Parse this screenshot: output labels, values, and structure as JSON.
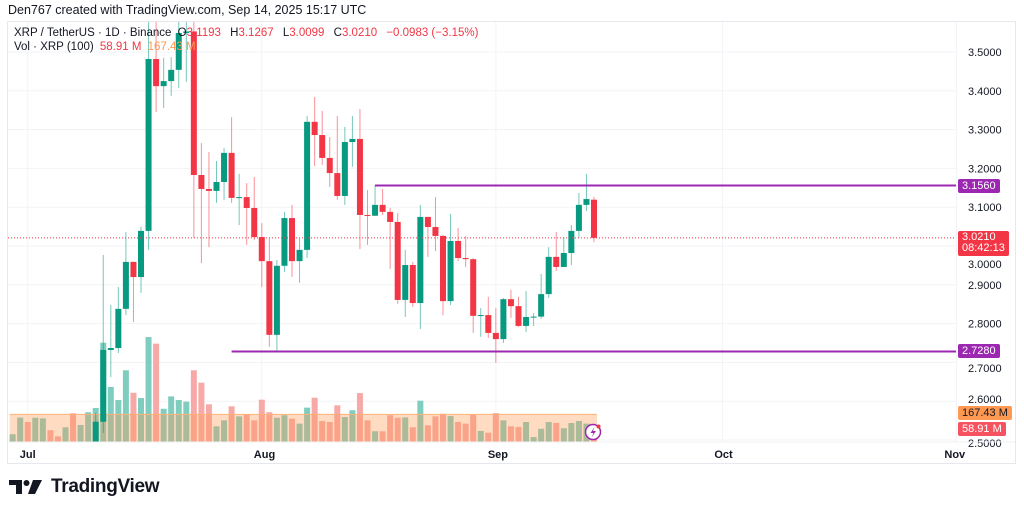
{
  "credit": "Den767 created with TradingView.com, Sep 14, 2025 15:17 UTC",
  "legend": {
    "symbol": "XRP / TetherUS · 1D · Binance",
    "o_label": "O",
    "o": "3.1193",
    "h_label": "H",
    "h": "3.1267",
    "l_label": "L",
    "l": "3.0099",
    "c_label": "C",
    "c": "3.0210",
    "change": "−0.0983 (−3.15%)",
    "vol_label": "Vol · XRP (100)",
    "vol": "58.91 M",
    "vol_ma": "167.43 M"
  },
  "badges": {
    "resistance": "3.1560",
    "last_price": "3.0210",
    "countdown": "08:42:13",
    "support": "2.7280",
    "vol_ma": "167.43 M",
    "vol": "58.91 M"
  },
  "logo": {
    "text": "TradingView"
  },
  "colors": {
    "up": "#089981",
    "down": "#f23645",
    "level": "#9c27b0",
    "vol_ma": "#ff9850"
  },
  "chart_data": {
    "type": "candlestick",
    "title": "XRP / TetherUS · 1D · Binance",
    "ylim": [
      2.48,
      3.6
    ],
    "y_ticks": [
      "3.5000",
      "3.4000",
      "3.3000",
      "3.2000",
      "3.1000",
      "3.0000",
      "2.9000",
      "2.8000",
      "2.7000",
      "2.6000",
      "2.5000"
    ],
    "x_ticks": [
      "Jul",
      "Aug",
      "Sep",
      "Oct",
      "Nov"
    ],
    "grid": true,
    "horizontal_levels": [
      {
        "price": 3.156,
        "from": "Aug 16"
      },
      {
        "price": 2.728,
        "from": "Jul 28"
      }
    ],
    "last_price": 3.021,
    "volume_ma": 167.43,
    "volume_unit": "M",
    "bars": [
      {
        "d": "Jun 29",
        "v": 47,
        "up": true
      },
      {
        "d": "Jun 30",
        "v": 148,
        "up": true
      },
      {
        "d": "Jul 1",
        "v": 121,
        "up": false
      },
      {
        "d": "Jul 2",
        "v": 147,
        "up": true
      },
      {
        "d": "Jul 3",
        "v": 143,
        "up": true
      },
      {
        "d": "Jul 4",
        "v": 71,
        "up": false
      },
      {
        "d": "Jul 5",
        "v": 34,
        "up": false
      },
      {
        "d": "Jul 6",
        "v": 89,
        "up": true
      },
      {
        "d": "Jul 7",
        "v": 174,
        "up": false
      },
      {
        "d": "Jul 8",
        "v": 103,
        "up": true
      },
      {
        "d": "Jul 9",
        "v": 180,
        "up": true
      },
      {
        "d": "Jul 10",
        "o": 2.49,
        "h": 2.57,
        "l": 2.47,
        "c": 2.547,
        "v": 206
      },
      {
        "d": "Jul 11",
        "o": 2.547,
        "h": 2.977,
        "l": 2.518,
        "c": 2.732,
        "v": 601
      },
      {
        "d": "Jul 12",
        "o": 2.732,
        "h": 2.848,
        "l": 2.662,
        "c": 2.737,
        "v": 333
      },
      {
        "d": "Jul 13",
        "o": 2.737,
        "h": 2.894,
        "l": 2.724,
        "c": 2.838,
        "v": 254
      },
      {
        "d": "Jul 14",
        "o": 2.838,
        "h": 3.036,
        "l": 2.822,
        "c": 2.959,
        "v": 434
      },
      {
        "d": "Jul 15",
        "o": 2.959,
        "h": 2.96,
        "l": 2.804,
        "c": 2.92,
        "v": 298
      },
      {
        "d": "Jul 16",
        "o": 2.92,
        "h": 3.05,
        "l": 2.879,
        "c": 3.039,
        "v": 266
      },
      {
        "d": "Jul 17",
        "o": 3.039,
        "h": 3.59,
        "l": 2.99,
        "c": 3.482,
        "v": 635
      },
      {
        "d": "Jul 18",
        "o": 3.482,
        "h": 3.66,
        "l": 3.345,
        "c": 3.412,
        "v": 595
      },
      {
        "d": "Jul 19",
        "o": 3.412,
        "h": 3.485,
        "l": 3.356,
        "c": 3.425,
        "v": 201
      },
      {
        "d": "Jul 20",
        "o": 3.425,
        "h": 3.487,
        "l": 3.387,
        "c": 3.454,
        "v": 276
      },
      {
        "d": "Jul 21",
        "o": 3.454,
        "h": 3.63,
        "l": 3.407,
        "c": 3.549,
        "v": 254
      },
      {
        "d": "Jul 22",
        "o": 3.549,
        "h": 3.6,
        "l": 3.423,
        "c": 3.553,
        "v": 244
      },
      {
        "d": "Jul 23",
        "o": 3.553,
        "h": 3.6,
        "l": 3.021,
        "c": 3.183,
        "v": 434
      },
      {
        "d": "Jul 24",
        "o": 3.183,
        "h": 3.265,
        "l": 2.956,
        "c": 3.147,
        "v": 359
      },
      {
        "d": "Jul 25",
        "o": 3.147,
        "h": 3.242,
        "l": 2.997,
        "c": 3.142,
        "v": 228
      },
      {
        "d": "Jul 26",
        "o": 3.142,
        "h": 3.219,
        "l": 3.111,
        "c": 3.165,
        "v": 95
      },
      {
        "d": "Jul 27",
        "o": 3.165,
        "h": 3.253,
        "l": 3.119,
        "c": 3.24,
        "v": 131
      },
      {
        "d": "Jul 28",
        "o": 3.24,
        "h": 3.332,
        "l": 3.111,
        "c": 3.124,
        "v": 216
      },
      {
        "d": "Jul 29",
        "o": 3.124,
        "h": 3.186,
        "l": 3.054,
        "c": 3.126,
        "v": 155
      },
      {
        "d": "Jul 30",
        "o": 3.126,
        "h": 3.162,
        "l": 3.003,
        "c": 3.098,
        "v": 168
      },
      {
        "d": "Jul 31",
        "o": 3.098,
        "h": 3.178,
        "l": 3.016,
        "c": 3.023,
        "v": 131
      },
      {
        "d": "Aug 1",
        "o": 3.023,
        "h": 3.059,
        "l": 2.894,
        "c": 2.961,
        "v": 256
      },
      {
        "d": "Aug 2",
        "o": 2.961,
        "h": 3.021,
        "l": 2.74,
        "c": 2.771,
        "v": 180
      },
      {
        "d": "Aug 3",
        "o": 2.771,
        "h": 2.964,
        "l": 2.727,
        "c": 2.949,
        "v": 147
      },
      {
        "d": "Aug 4",
        "o": 2.949,
        "h": 3.088,
        "l": 2.933,
        "c": 3.072,
        "v": 162
      },
      {
        "d": "Aug 5",
        "o": 3.072,
        "h": 3.106,
        "l": 2.92,
        "c": 2.961,
        "v": 141
      },
      {
        "d": "Aug 6",
        "o": 2.961,
        "h": 3.021,
        "l": 2.905,
        "c": 2.99,
        "v": 111
      },
      {
        "d": "Aug 7",
        "o": 2.99,
        "h": 3.335,
        "l": 2.969,
        "c": 3.32,
        "v": 208
      },
      {
        "d": "Aug 8",
        "o": 3.32,
        "h": 3.384,
        "l": 3.206,
        "c": 3.286,
        "v": 268
      },
      {
        "d": "Aug 9",
        "o": 3.286,
        "h": 3.348,
        "l": 3.209,
        "c": 3.227,
        "v": 127
      },
      {
        "d": "Aug 10",
        "o": 3.227,
        "h": 3.281,
        "l": 3.152,
        "c": 3.188,
        "v": 121
      },
      {
        "d": "Aug 11",
        "o": 3.188,
        "h": 3.335,
        "l": 3.119,
        "c": 3.129,
        "v": 222
      },
      {
        "d": "Aug 12",
        "o": 3.129,
        "h": 3.307,
        "l": 3.106,
        "c": 3.268,
        "v": 151
      },
      {
        "d": "Aug 13",
        "o": 3.268,
        "h": 3.335,
        "l": 3.204,
        "c": 3.276,
        "v": 192
      },
      {
        "d": "Aug 14",
        "o": 3.276,
        "h": 3.353,
        "l": 2.992,
        "c": 3.08,
        "v": 296
      },
      {
        "d": "Aug 15",
        "o": 3.08,
        "h": 3.144,
        "l": 3.003,
        "c": 3.078,
        "v": 131
      },
      {
        "d": "Aug 16",
        "o": 3.078,
        "h": 3.157,
        "l": 3.077,
        "c": 3.106,
        "v": 65
      },
      {
        "d": "Aug 17",
        "o": 3.106,
        "h": 3.147,
        "l": 3.08,
        "c": 3.088,
        "v": 65
      },
      {
        "d": "Aug 18",
        "o": 3.088,
        "h": 3.098,
        "l": 2.941,
        "c": 3.062,
        "v": 162
      },
      {
        "d": "Aug 19",
        "o": 3.062,
        "h": 3.085,
        "l": 2.851,
        "c": 2.861,
        "v": 147
      },
      {
        "d": "Aug 20",
        "o": 2.861,
        "h": 2.99,
        "l": 2.817,
        "c": 2.951,
        "v": 149
      },
      {
        "d": "Aug 21",
        "o": 2.951,
        "h": 2.959,
        "l": 2.843,
        "c": 2.853,
        "v": 89
      },
      {
        "d": "Aug 22",
        "o": 2.853,
        "h": 3.106,
        "l": 2.786,
        "c": 3.075,
        "v": 250
      },
      {
        "d": "Aug 23",
        "o": 3.075,
        "h": 3.075,
        "l": 2.972,
        "c": 3.049,
        "v": 101
      },
      {
        "d": "Aug 24",
        "o": 3.049,
        "h": 3.126,
        "l": 2.987,
        "c": 3.026,
        "v": 155
      },
      {
        "d": "Aug 25",
        "o": 3.026,
        "h": 3.028,
        "l": 2.822,
        "c": 2.858,
        "v": 171
      },
      {
        "d": "Aug 26",
        "o": 2.858,
        "h": 3.083,
        "l": 2.848,
        "c": 3.013,
        "v": 157
      },
      {
        "d": "Aug 27",
        "o": 3.013,
        "h": 3.046,
        "l": 2.961,
        "c": 2.969,
        "v": 121
      },
      {
        "d": "Aug 28",
        "o": 2.969,
        "h": 3.026,
        "l": 2.946,
        "c": 2.966,
        "v": 111
      },
      {
        "d": "Aug 29",
        "o": 2.966,
        "h": 2.969,
        "l": 2.776,
        "c": 2.82,
        "v": 165
      },
      {
        "d": "Aug 30",
        "o": 2.82,
        "h": 2.84,
        "l": 2.766,
        "c": 2.822,
        "v": 67
      },
      {
        "d": "Aug 31",
        "o": 2.822,
        "h": 2.869,
        "l": 2.763,
        "c": 2.776,
        "v": 56
      },
      {
        "d": "Sep 1",
        "o": 2.776,
        "h": 2.84,
        "l": 2.699,
        "c": 2.76,
        "v": 175
      },
      {
        "d": "Sep 2",
        "o": 2.76,
        "h": 2.866,
        "l": 2.75,
        "c": 2.863,
        "v": 131
      },
      {
        "d": "Sep 3",
        "o": 2.863,
        "h": 2.887,
        "l": 2.815,
        "c": 2.845,
        "v": 95
      },
      {
        "d": "Sep 4",
        "o": 2.845,
        "h": 2.869,
        "l": 2.791,
        "c": 2.794,
        "v": 91
      },
      {
        "d": "Sep 5",
        "o": 2.794,
        "h": 2.884,
        "l": 2.778,
        "c": 2.817,
        "v": 121
      },
      {
        "d": "Sep 6",
        "o": 2.817,
        "h": 2.827,
        "l": 2.794,
        "c": 2.818,
        "v": 30
      },
      {
        "d": "Sep 7",
        "o": 2.818,
        "h": 2.928,
        "l": 2.812,
        "c": 2.876,
        "v": 80
      },
      {
        "d": "Sep 8",
        "o": 2.876,
        "h": 2.997,
        "l": 2.866,
        "c": 2.972,
        "v": 121
      },
      {
        "d": "Sep 9",
        "o": 2.972,
        "h": 3.036,
        "l": 2.936,
        "c": 2.946,
        "v": 115
      },
      {
        "d": "Sep 10",
        "o": 2.946,
        "h": 3.023,
        "l": 2.946,
        "c": 2.982,
        "v": 83
      },
      {
        "d": "Sep 11",
        "o": 2.982,
        "h": 3.054,
        "l": 2.951,
        "c": 3.039,
        "v": 115
      },
      {
        "d": "Sep 12",
        "o": 3.039,
        "h": 3.137,
        "l": 3.021,
        "c": 3.106,
        "v": 127
      },
      {
        "d": "Sep 13",
        "o": 3.106,
        "h": 3.186,
        "l": 3.09,
        "c": 3.121,
        "v": 111
      },
      {
        "d": "Sep 14",
        "o": 3.1193,
        "h": 3.1267,
        "l": 3.0099,
        "c": 3.021,
        "v": 58.91
      }
    ]
  }
}
